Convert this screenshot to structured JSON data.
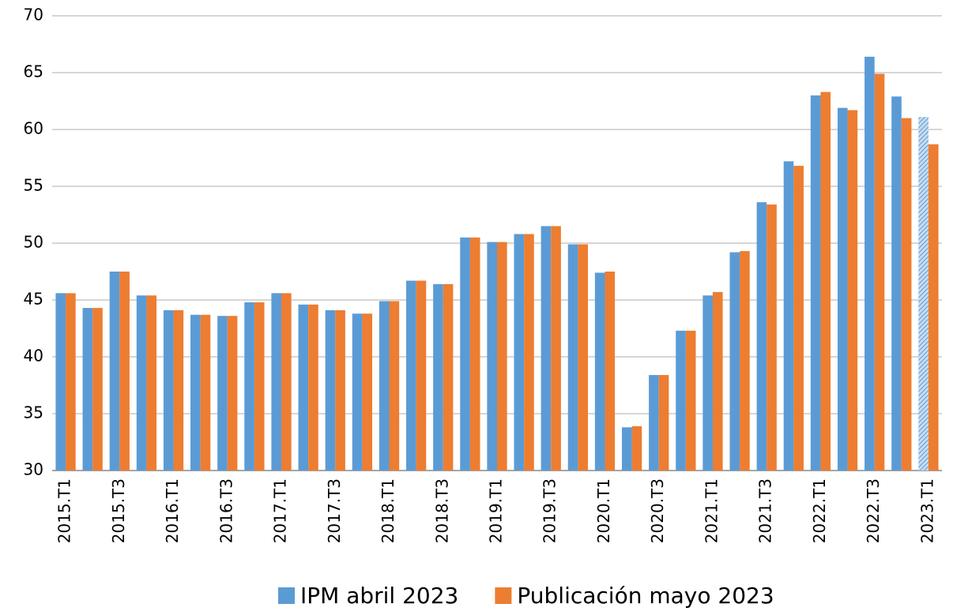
{
  "chart_data": {
    "type": "bar",
    "categories": [
      "2015.T1",
      null,
      "2015.T3",
      null,
      "2016.T1",
      null,
      "2016.T3",
      null,
      "2017.T1",
      null,
      "2017.T3",
      null,
      "2018.T1",
      null,
      "2018.T3",
      null,
      "2019.T1",
      null,
      "2019.T3",
      null,
      "2020.T1",
      null,
      "2020.T3",
      null,
      "2021.T1",
      null,
      "2021.T3",
      null,
      "2022.T1",
      null,
      "2022.T3",
      null,
      "2023.T1"
    ],
    "series": [
      {
        "name": "IPM abril 2023",
        "color": "#5b9bd5",
        "values": [
          45.6,
          44.3,
          47.5,
          45.4,
          44.1,
          43.7,
          43.6,
          44.8,
          45.6,
          44.6,
          44.1,
          43.8,
          44.9,
          46.7,
          46.4,
          50.5,
          50.1,
          50.8,
          51.5,
          49.9,
          47.4,
          33.8,
          38.4,
          42.3,
          45.4,
          49.2,
          53.6,
          57.2,
          63.0,
          61.9,
          66.4,
          62.9,
          61.1
        ]
      },
      {
        "name": "Publicación mayo 2023",
        "color": "#ed7d31",
        "values": [
          45.6,
          44.3,
          47.5,
          45.4,
          44.1,
          43.7,
          43.6,
          44.8,
          45.6,
          44.6,
          44.1,
          43.8,
          44.9,
          46.7,
          46.4,
          50.5,
          50.1,
          50.8,
          51.5,
          49.9,
          47.5,
          33.9,
          38.4,
          42.3,
          45.7,
          49.3,
          53.4,
          56.8,
          63.3,
          61.7,
          64.9,
          61.0,
          58.7
        ]
      }
    ],
    "ylim": [
      30,
      70
    ],
    "yticks": [
      30,
      35,
      40,
      45,
      50,
      55,
      60,
      65,
      70
    ],
    "grid": true,
    "legend": "bottom"
  }
}
